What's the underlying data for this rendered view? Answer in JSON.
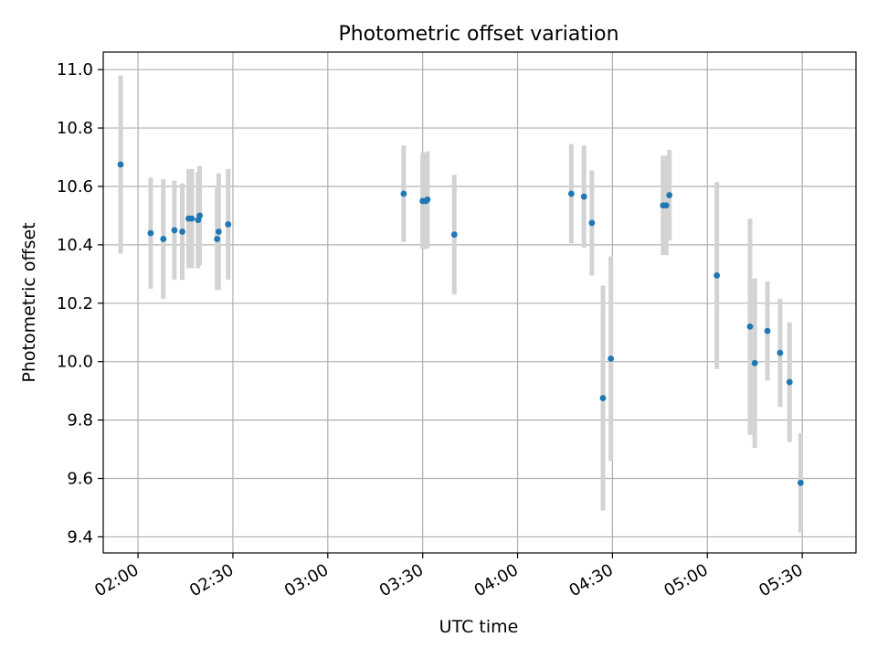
{
  "chart_data": {
    "type": "scatter",
    "title": "Photometric offset variation",
    "xlabel": "UTC time",
    "ylabel": "Photometric offset",
    "xlim": [
      "01:49",
      "05:47"
    ],
    "ylim": [
      9.345,
      11.06
    ],
    "grid": true,
    "x_ticks": [
      "02:00",
      "02:30",
      "03:00",
      "03:30",
      "04:00",
      "04:30",
      "05:00",
      "05:30"
    ],
    "y_ticks": [
      9.4,
      9.6,
      9.8,
      10.0,
      10.2,
      10.4,
      10.6,
      10.8,
      11.0
    ],
    "series": [
      {
        "points": [
          {
            "x": "01:54:30",
            "y": 10.675,
            "err": 0.305
          },
          {
            "x": "02:04:00",
            "y": 10.44,
            "err": 0.19
          },
          {
            "x": "02:08:00",
            "y": 10.42,
            "err": 0.205
          },
          {
            "x": "02:11:30",
            "y": 10.45,
            "err": 0.17
          },
          {
            "x": "02:14:00",
            "y": 10.445,
            "err": 0.165
          },
          {
            "x": "02:16:00",
            "y": 10.49,
            "err": 0.17
          },
          {
            "x": "02:17:00",
            "y": 10.49,
            "err": 0.17
          },
          {
            "x": "02:19:00",
            "y": 10.485,
            "err": 0.165
          },
          {
            "x": "02:19:30",
            "y": 10.5,
            "err": 0.17
          },
          {
            "x": "02:25:00",
            "y": 10.42,
            "err": 0.175
          },
          {
            "x": "02:25:30",
            "y": 10.445,
            "err": 0.2
          },
          {
            "x": "02:28:30",
            "y": 10.47,
            "err": 0.19
          },
          {
            "x": "03:24:00",
            "y": 10.575,
            "err": 0.165
          },
          {
            "x": "03:30:00",
            "y": 10.55,
            "err": 0.165
          },
          {
            "x": "03:31:00",
            "y": 10.55,
            "err": 0.165
          },
          {
            "x": "03:31:30",
            "y": 10.555,
            "err": 0.165
          },
          {
            "x": "03:40:00",
            "y": 10.435,
            "err": 0.205
          },
          {
            "x": "04:17:00",
            "y": 10.575,
            "err": 0.17
          },
          {
            "x": "04:21:00",
            "y": 10.565,
            "err": 0.175
          },
          {
            "x": "04:23:30",
            "y": 10.475,
            "err": 0.18
          },
          {
            "x": "04:27:00",
            "y": 9.875,
            "err": 0.385
          },
          {
            "x": "04:29:30",
            "y": 10.01,
            "err": 0.35
          },
          {
            "x": "04:46:00",
            "y": 10.535,
            "err": 0.17
          },
          {
            "x": "04:47:00",
            "y": 10.535,
            "err": 0.17
          },
          {
            "x": "04:48:00",
            "y": 10.57,
            "err": 0.155
          },
          {
            "x": "05:03:00",
            "y": 10.295,
            "err": 0.32
          },
          {
            "x": "05:13:30",
            "y": 10.12,
            "err": 0.37
          },
          {
            "x": "05:15:00",
            "y": 9.995,
            "err": 0.29
          },
          {
            "x": "05:19:00",
            "y": 10.105,
            "err": 0.17
          },
          {
            "x": "05:23:00",
            "y": 10.03,
            "err": 0.185
          },
          {
            "x": "05:26:00",
            "y": 9.93,
            "err": 0.205
          },
          {
            "x": "05:29:30",
            "y": 9.585,
            "err": 0.17
          }
        ]
      }
    ],
    "colors": {
      "points": "#1f77b4",
      "errorbars": "#d3d3d3",
      "grid": "#b0b0b0"
    }
  }
}
